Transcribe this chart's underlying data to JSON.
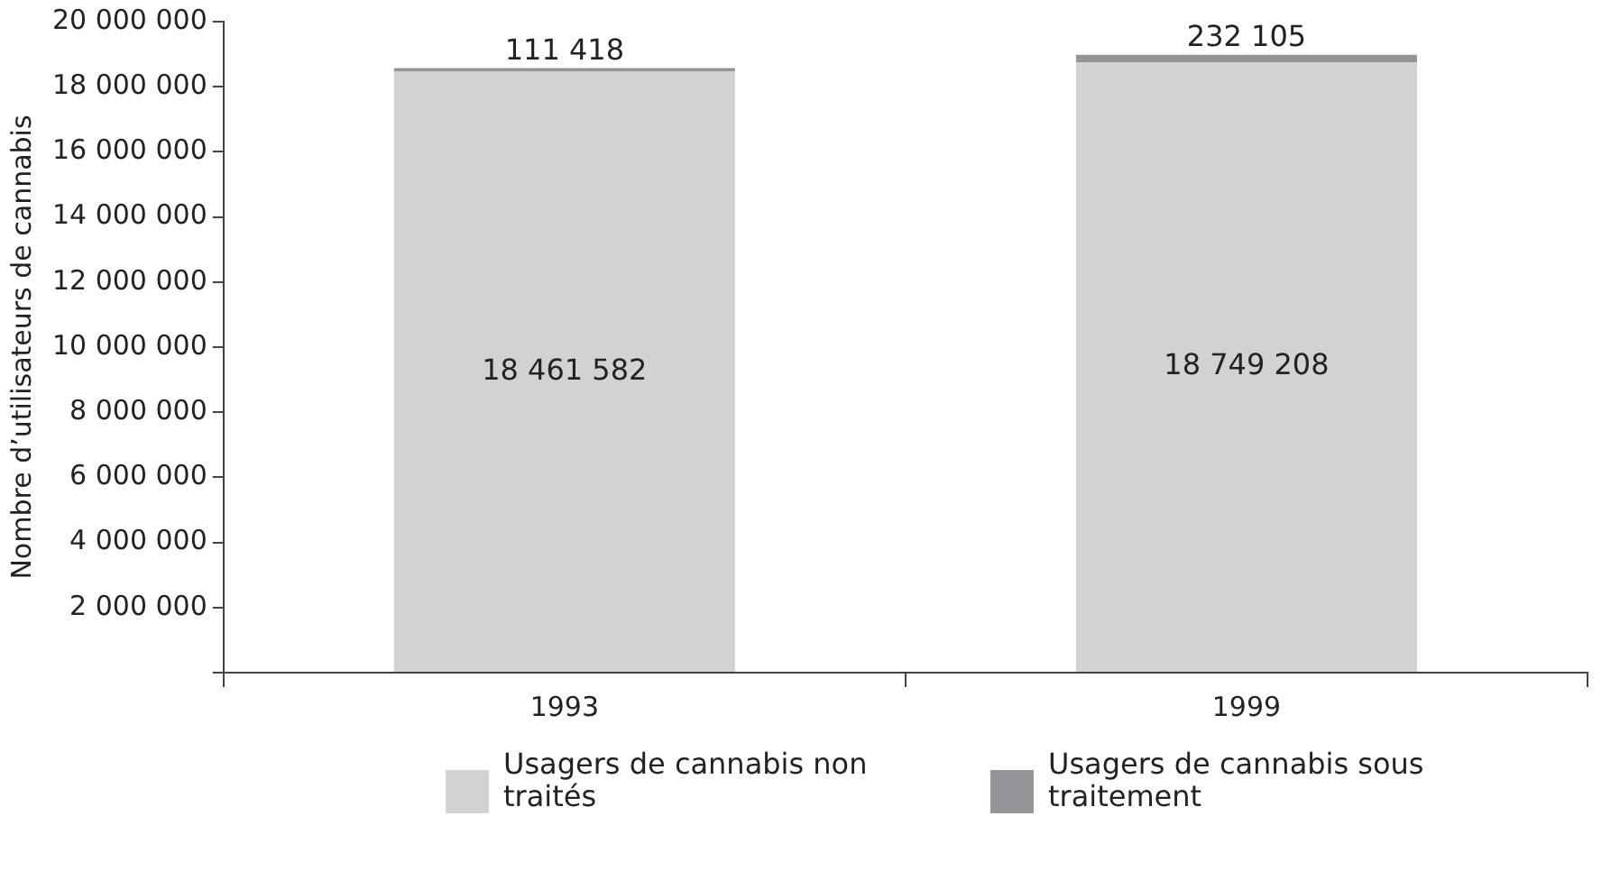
{
  "chart_data": {
    "type": "bar",
    "stacked": true,
    "ylabel": "Nombre d’utilisateurs de cannabis",
    "categories": [
      "1993",
      "1999"
    ],
    "series": [
      {
        "name": "Usagers de cannabis non traités",
        "color": "#d1d2d3",
        "values": [
          18461582,
          18749208
        ],
        "value_labels": [
          "18 461 582",
          "18 749 208"
        ]
      },
      {
        "name": "Usagers de cannabis sous traitement",
        "color": "#939598",
        "values": [
          111418,
          232105
        ],
        "value_labels": [
          "111 418",
          "232 105"
        ]
      }
    ],
    "ylim": [
      0,
      20000000
    ],
    "yticks": [
      {
        "value": 0,
        "label": null
      },
      {
        "value": 2000000,
        "label": "2 000 000"
      },
      {
        "value": 4000000,
        "label": "4 000 000"
      },
      {
        "value": 6000000,
        "label": "6 000 000"
      },
      {
        "value": 8000000,
        "label": "8 000 000"
      },
      {
        "value": 10000000,
        "label": "10 000 000"
      },
      {
        "value": 12000000,
        "label": "12 000 000"
      },
      {
        "value": 14000000,
        "label": "14 000 000"
      },
      {
        "value": 16000000,
        "label": "16 000 000"
      },
      {
        "value": 18000000,
        "label": "18 000 000"
      },
      {
        "value": 20000000,
        "label": "20 000 000"
      }
    ],
    "grid": false,
    "legend": "bottom"
  }
}
